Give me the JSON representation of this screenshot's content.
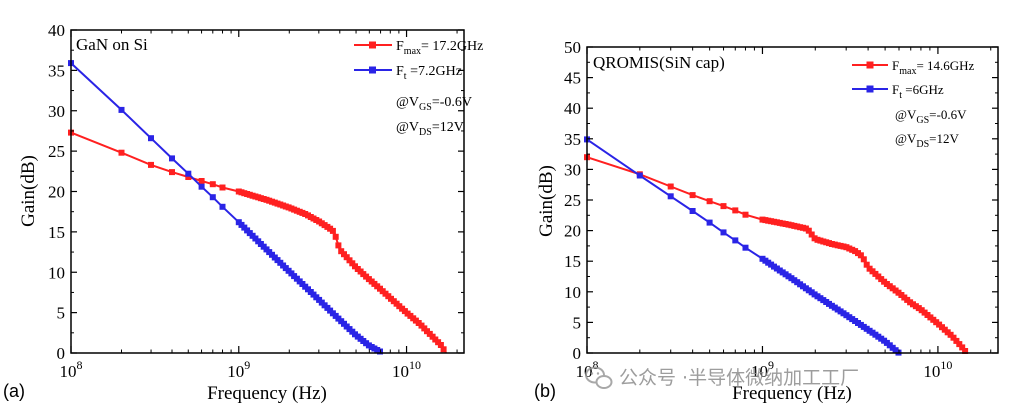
{
  "panels": [
    {
      "panel_label": "(a)",
      "inset_title": "GaN on Si",
      "legend": [
        {
          "prefix": "F",
          "sub": "max",
          "text": "= 17.2GHz"
        },
        {
          "prefix": "F",
          "sub": "t",
          "text": " =7.2GHz"
        }
      ],
      "conditions": [
        {
          "prefix": "@V",
          "sub": "GS",
          "text": "=-0.6V"
        },
        {
          "prefix": "@V",
          "sub": "DS",
          "text": "=12V"
        }
      ]
    },
    {
      "panel_label": "(b)",
      "inset_title": "QROMIS(SiN cap)",
      "legend": [
        {
          "prefix": "F",
          "sub": "max",
          "text": "= 14.6GHz"
        },
        {
          "prefix": "F",
          "sub": "t",
          "text": " =6GHz"
        }
      ],
      "conditions": [
        {
          "prefix": "@V",
          "sub": "GS",
          "text": "=-0.6V"
        },
        {
          "prefix": "@V",
          "sub": "DS",
          "text": "=12V"
        }
      ]
    }
  ],
  "watermark": {
    "text": "公众号 ·半导体微纳加工工厂",
    "icon": "wechat-icon"
  },
  "colors": {
    "fmax": "#ff2020",
    "ft": "#2a24e6",
    "axis": "#000000"
  },
  "chart_data": [
    {
      "type": "line",
      "xlabel": "Frequency (Hz)",
      "ylabel": "Gain(dB)",
      "xscale": "log",
      "xlim": [
        100000000.0,
        22000000000.0
      ],
      "ylim": [
        0,
        40
      ],
      "yticks": [
        0,
        5,
        10,
        15,
        20,
        25,
        30,
        35,
        40
      ],
      "xticks": [
        {
          "value": 100000000.0,
          "base": "10",
          "exp": "8"
        },
        {
          "value": 1000000000.0,
          "base": "10",
          "exp": "9"
        },
        {
          "value": 10000000000.0,
          "base": "10",
          "exp": "10"
        }
      ],
      "legend_position": "top-right",
      "series": [
        {
          "name": "Fmax",
          "color": "#ff2020",
          "points": [
            [
              100000000.0,
              27.3
            ],
            [
              200000000.0,
              24.8
            ],
            [
              300000000.0,
              23.3
            ],
            [
              400000000.0,
              22.4
            ],
            [
              500000000.0,
              21.8
            ],
            [
              600000000.0,
              21.3
            ],
            [
              700000000.0,
              20.9
            ],
            [
              800000000.0,
              20.5
            ],
            [
              1000000000.0,
              20.0
            ],
            [
              1500000000.0,
              18.9
            ],
            [
              2000000000.0,
              18.0
            ],
            [
              2500000000.0,
              17.2
            ],
            [
              3000000000.0,
              16.3
            ],
            [
              3500000000.0,
              15.4
            ],
            [
              3700000000.0,
              15.0
            ],
            [
              4000000000.0,
              12.8
            ],
            [
              5000000000.0,
              10.6
            ],
            [
              6000000000.0,
              9.1
            ],
            [
              7000000000.0,
              7.9
            ],
            [
              8000000000.0,
              6.8
            ],
            [
              10000000000.0,
              5.0
            ],
            [
              12000000000.0,
              3.6
            ],
            [
              14000000000.0,
              2.2
            ],
            [
              16000000000.0,
              1.0
            ],
            [
              17200000000.0,
              0
            ]
          ]
        },
        {
          "name": "Ft",
          "color": "#2a24e6",
          "points": [
            [
              100000000.0,
              35.9
            ],
            [
              200000000.0,
              30.1
            ],
            [
              300000000.0,
              26.6
            ],
            [
              400000000.0,
              24.1
            ],
            [
              500000000.0,
              22.2
            ],
            [
              600000000.0,
              20.6
            ],
            [
              700000000.0,
              19.3
            ],
            [
              800000000.0,
              18.1
            ],
            [
              1000000000.0,
              16.2
            ],
            [
              1500000000.0,
              12.6
            ],
            [
              2000000000.0,
              10.1
            ],
            [
              3000000000.0,
              6.6
            ],
            [
              4000000000.0,
              4.1
            ],
            [
              5000000000.0,
              2.2
            ],
            [
              6000000000.0,
              0.9
            ],
            [
              7200000000.0,
              0
            ]
          ]
        }
      ]
    },
    {
      "type": "line",
      "xlabel": "Frequency (Hz)",
      "ylabel": "Gain(dB)",
      "xscale": "log",
      "xlim": [
        100000000.0,
        22000000000.0
      ],
      "ylim": [
        0,
        50
      ],
      "yticks": [
        0,
        5,
        10,
        15,
        20,
        25,
        30,
        35,
        40,
        45,
        50
      ],
      "xticks": [
        {
          "value": 100000000.0,
          "base": "10",
          "exp": "8"
        },
        {
          "value": 1000000000.0,
          "base": "10",
          "exp": "9"
        },
        {
          "value": 10000000000.0,
          "base": "10",
          "exp": "10"
        }
      ],
      "legend_position": "top-right",
      "series": [
        {
          "name": "Fmax",
          "color": "#ff2020",
          "points": [
            [
              100000000.0,
              32.0
            ],
            [
              200000000.0,
              29.2
            ],
            [
              300000000.0,
              27.2
            ],
            [
              400000000.0,
              25.8
            ],
            [
              500000000.0,
              24.8
            ],
            [
              600000000.0,
              24.0
            ],
            [
              700000000.0,
              23.3
            ],
            [
              800000000.0,
              22.6
            ],
            [
              1000000000.0,
              21.8
            ],
            [
              1400000000.0,
              21.0
            ],
            [
              1800000000.0,
              20.3
            ],
            [
              2000000000.0,
              18.6
            ],
            [
              2500000000.0,
              17.8
            ],
            [
              3000000000.0,
              17.3
            ],
            [
              3400000000.0,
              16.6
            ],
            [
              3700000000.0,
              15.8
            ],
            [
              4000000000.0,
              14.0
            ],
            [
              5000000000.0,
              11.5
            ],
            [
              6000000000.0,
              9.8
            ],
            [
              7000000000.0,
              8.2
            ],
            [
              8000000000.0,
              7.1
            ],
            [
              10000000000.0,
              4.8
            ],
            [
              12000000000.0,
              2.8
            ],
            [
              13500000000.0,
              1.2
            ],
            [
              14600000000.0,
              0
            ]
          ]
        },
        {
          "name": "Ft",
          "color": "#2a24e6",
          "points": [
            [
              100000000.0,
              34.9
            ],
            [
              200000000.0,
              29.0
            ],
            [
              300000000.0,
              25.6
            ],
            [
              400000000.0,
              23.2
            ],
            [
              500000000.0,
              21.3
            ],
            [
              600000000.0,
              19.7
            ],
            [
              700000000.0,
              18.4
            ],
            [
              800000000.0,
              17.2
            ],
            [
              1000000000.0,
              15.4
            ],
            [
              1500000000.0,
              12.0
            ],
            [
              2000000000.0,
              9.5
            ],
            [
              3000000000.0,
              6.2
            ],
            [
              4000000000.0,
              3.8
            ],
            [
              5000000000.0,
              1.9
            ],
            [
              6000000000.0,
              0
            ]
          ]
        }
      ]
    }
  ]
}
